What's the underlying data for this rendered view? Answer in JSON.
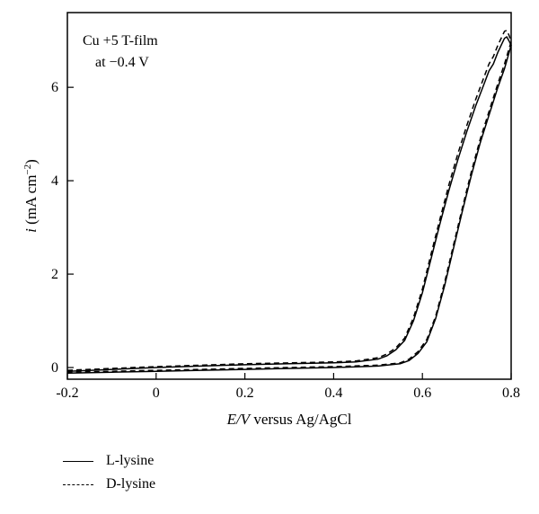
{
  "chart_data": {
    "type": "line",
    "xlabel_italic": "E/V",
    "xlabel_rest": " versus Ag/AgCl",
    "ylabel_italic": "i",
    "ylabel_rest": " (mA cm",
    "ylabel_sup": "−2",
    "ylabel_close": ")",
    "annotation": [
      "Cu +5 T-film",
      "at −0.4 V"
    ],
    "xlim": [
      -0.2,
      0.8
    ],
    "ylim": [
      -0.25,
      7.6
    ],
    "x_ticks": [
      -0.2,
      0,
      0.2,
      0.4,
      0.6,
      0.8
    ],
    "x_tick_labels": [
      "-0.2",
      "0",
      "0.2",
      "0.4",
      "0.6",
      "0.8"
    ],
    "y_ticks": [
      0,
      2,
      4,
      6
    ],
    "y_tick_labels": [
      "0",
      "2",
      "4",
      "6"
    ],
    "grid": false,
    "legend_position": "bottom-left",
    "series": [
      {
        "name": "L-lysine",
        "style": "solid",
        "forward": [
          [
            -0.2,
            -0.08
          ],
          [
            -0.1,
            -0.04
          ],
          [
            0.0,
            0.0
          ],
          [
            0.1,
            0.03
          ],
          [
            0.2,
            0.06
          ],
          [
            0.3,
            0.08
          ],
          [
            0.4,
            0.1
          ],
          [
            0.45,
            0.12
          ],
          [
            0.5,
            0.18
          ],
          [
            0.52,
            0.25
          ],
          [
            0.54,
            0.38
          ],
          [
            0.56,
            0.58
          ],
          [
            0.58,
            1.0
          ],
          [
            0.6,
            1.6
          ],
          [
            0.62,
            2.35
          ],
          [
            0.64,
            3.1
          ],
          [
            0.66,
            3.8
          ],
          [
            0.68,
            4.45
          ],
          [
            0.7,
            5.05
          ],
          [
            0.72,
            5.6
          ],
          [
            0.74,
            6.1
          ],
          [
            0.75,
            6.35
          ],
          [
            0.76,
            6.5
          ]
        ],
        "peak": [
          [
            0.76,
            6.5
          ],
          [
            0.77,
            6.75
          ],
          [
            0.78,
            6.95
          ],
          [
            0.785,
            7.05
          ],
          [
            0.79,
            7.08
          ],
          [
            0.795,
            7.0
          ],
          [
            0.8,
            6.9
          ]
        ],
        "return": [
          [
            0.8,
            6.9
          ],
          [
            0.785,
            6.4
          ],
          [
            0.77,
            6.0
          ],
          [
            0.75,
            5.4
          ],
          [
            0.73,
            4.8
          ],
          [
            0.71,
            4.1
          ],
          [
            0.69,
            3.35
          ],
          [
            0.67,
            2.55
          ],
          [
            0.65,
            1.75
          ],
          [
            0.63,
            1.05
          ],
          [
            0.61,
            0.55
          ],
          [
            0.59,
            0.3
          ],
          [
            0.57,
            0.15
          ],
          [
            0.55,
            0.08
          ],
          [
            0.5,
            0.03
          ],
          [
            0.4,
            0.0
          ],
          [
            0.3,
            -0.02
          ],
          [
            0.2,
            -0.04
          ],
          [
            0.1,
            -0.06
          ],
          [
            0.0,
            -0.08
          ],
          [
            -0.1,
            -0.1
          ],
          [
            -0.2,
            -0.12
          ]
        ]
      },
      {
        "name": "D-lysine",
        "style": "dashed",
        "forward": [
          [
            -0.2,
            -0.06
          ],
          [
            -0.1,
            -0.02
          ],
          [
            0.0,
            0.02
          ],
          [
            0.1,
            0.05
          ],
          [
            0.2,
            0.08
          ],
          [
            0.3,
            0.1
          ],
          [
            0.4,
            0.12
          ],
          [
            0.45,
            0.14
          ],
          [
            0.5,
            0.21
          ],
          [
            0.52,
            0.29
          ],
          [
            0.54,
            0.42
          ],
          [
            0.56,
            0.63
          ],
          [
            0.58,
            1.07
          ],
          [
            0.6,
            1.68
          ],
          [
            0.62,
            2.45
          ],
          [
            0.64,
            3.2
          ],
          [
            0.66,
            3.92
          ],
          [
            0.68,
            4.58
          ],
          [
            0.7,
            5.18
          ],
          [
            0.72,
            5.74
          ],
          [
            0.74,
            6.25
          ],
          [
            0.75,
            6.5
          ],
          [
            0.76,
            6.66
          ]
        ],
        "peak": [
          [
            0.76,
            6.66
          ],
          [
            0.77,
            6.9
          ],
          [
            0.78,
            7.1
          ],
          [
            0.785,
            7.2
          ],
          [
            0.79,
            7.22
          ],
          [
            0.795,
            7.12
          ],
          [
            0.8,
            6.98
          ]
        ],
        "return": [
          [
            0.8,
            6.98
          ],
          [
            0.785,
            6.5
          ],
          [
            0.77,
            6.08
          ],
          [
            0.75,
            5.48
          ],
          [
            0.73,
            4.88
          ],
          [
            0.71,
            4.18
          ],
          [
            0.69,
            3.42
          ],
          [
            0.67,
            2.62
          ],
          [
            0.65,
            1.82
          ],
          [
            0.63,
            1.1
          ],
          [
            0.61,
            0.6
          ],
          [
            0.59,
            0.34
          ],
          [
            0.57,
            0.18
          ],
          [
            0.55,
            0.1
          ],
          [
            0.5,
            0.05
          ],
          [
            0.4,
            0.02
          ],
          [
            0.3,
            0.0
          ],
          [
            0.2,
            -0.02
          ],
          [
            0.1,
            -0.04
          ],
          [
            0.0,
            -0.06
          ],
          [
            -0.1,
            -0.08
          ],
          [
            -0.2,
            -0.1
          ]
        ]
      }
    ]
  }
}
